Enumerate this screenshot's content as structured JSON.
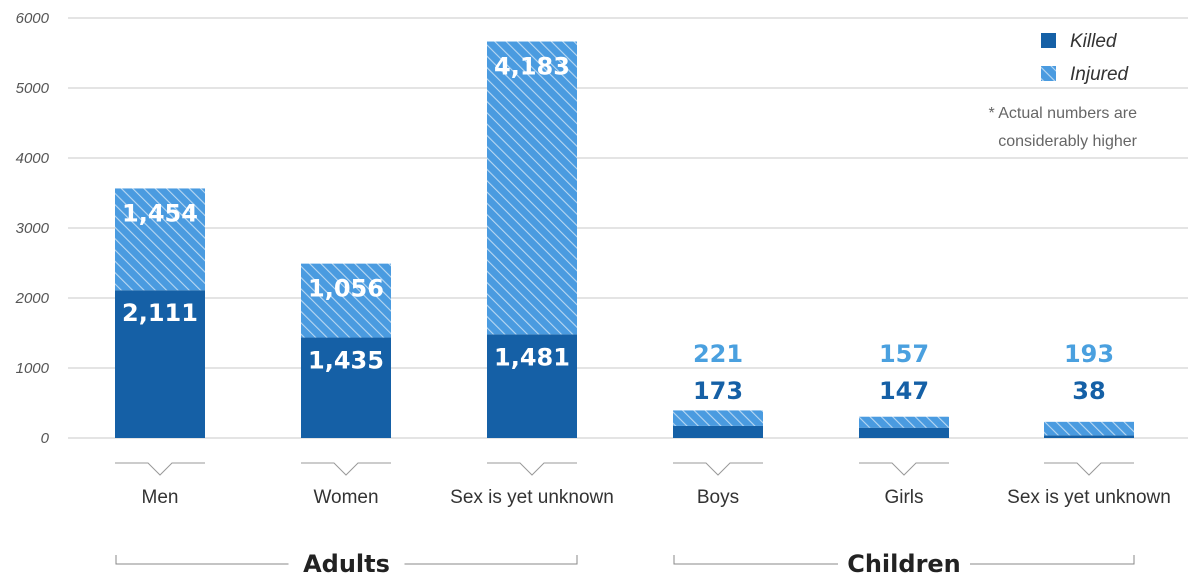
{
  "colors": {
    "killed": "#1560a6",
    "injured_base": "#4a9be0",
    "injured_hatch": "#b9d8f2",
    "grid": "#c8c8c8",
    "axis_text": "#555555"
  },
  "legend": {
    "position": "top-right",
    "items": [
      {
        "label": "Killed",
        "key": "killed"
      },
      {
        "label": "Injured",
        "key": "injured"
      }
    ]
  },
  "note": {
    "line1": "* Actual numbers are",
    "line2": "considerably higher"
  },
  "chart_data": {
    "type": "bar",
    "stacked": true,
    "categories": [
      "Men",
      "Women",
      "Sex is yet unknown",
      "Boys",
      "Girls",
      "Sex is yet unknown"
    ],
    "groups": [
      {
        "label": "Adults",
        "categories": [
          0,
          1,
          2
        ]
      },
      {
        "label": "Children",
        "categories": [
          3,
          4,
          5
        ]
      }
    ],
    "series": [
      {
        "name": "Killed",
        "values": [
          2111,
          1435,
          1481,
          173,
          147,
          38
        ]
      },
      {
        "name": "Injured",
        "values": [
          1454,
          1056,
          4183,
          221,
          157,
          193
        ]
      }
    ],
    "value_labels": {
      "killed": [
        "2,111",
        "1,435",
        "1,481",
        "173",
        "147",
        "38"
      ],
      "injured": [
        "1,454",
        "1,056",
        "4,183",
        "221",
        "157",
        "193"
      ]
    },
    "ylim": [
      0,
      6000
    ],
    "yticks": [
      0,
      1000,
      2000,
      3000,
      4000,
      5000,
      6000
    ],
    "ytick_labels": [
      "0",
      "1000",
      "2000",
      "3000",
      "4000",
      "5000",
      "6000"
    ],
    "grid": true,
    "title": "",
    "xlabel": "",
    "ylabel": ""
  }
}
